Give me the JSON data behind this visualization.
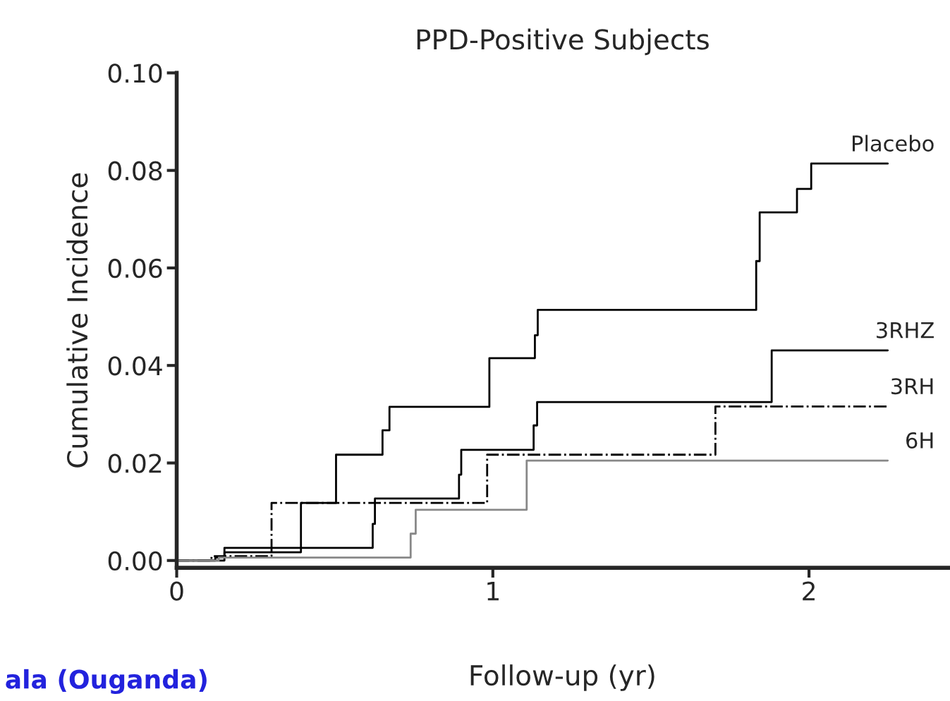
{
  "chart_data": {
    "type": "step",
    "title": "PPD-Positive Subjects",
    "xlabel": "Follow-up (yr)",
    "ylabel": "Cumulative Incidence",
    "xlim": [
      0,
      2.44
    ],
    "xticks": [
      0,
      1,
      2
    ],
    "ylim": [
      -0.0015,
      0.1
    ],
    "yticks": [
      {
        "value": 0,
        "label": "0.00"
      },
      {
        "value": 0.02,
        "label": "0.02"
      },
      {
        "value": 0.04,
        "label": "0.04"
      },
      {
        "value": 0.06,
        "label": "0.06"
      },
      {
        "value": 0.08,
        "label": "0.08"
      },
      {
        "value": 0.1,
        "label": "0.10"
      }
    ],
    "grid": false,
    "legend": false,
    "series": [
      {
        "name": "Placebo",
        "color": "#000000",
        "line_style": "solid",
        "x": [
          0,
          0.122,
          0.151,
          0.393,
          0.504,
          0.651,
          0.673,
          0.989,
          1.133,
          1.142,
          1.833,
          1.844,
          1.962,
          2.007,
          2.249
        ],
        "values": [
          0,
          0.0006,
          0.0017,
          0.0118,
          0.0217,
          0.0267,
          0.0315,
          0.0415,
          0.0462,
          0.0514,
          0.0614,
          0.0714,
          0.0762,
          0.0814,
          0.0814
        ]
      },
      {
        "name": "3RHZ",
        "color": "#000000",
        "line_style": "solid",
        "x": [
          0,
          0.151,
          0.62,
          0.627,
          0.893,
          0.9,
          1.129,
          1.14,
          1.882,
          2.249
        ],
        "values": [
          0,
          0.0026,
          0.0075,
          0.0127,
          0.0176,
          0.0227,
          0.0277,
          0.0325,
          0.0431,
          0.0431
        ]
      },
      {
        "name": "3RH",
        "color": "#000000",
        "line_style": "dashdot",
        "x": [
          0,
          0.11,
          0.3,
          0.982,
          1.704,
          2.249
        ],
        "values": [
          0,
          0.0009,
          0.0118,
          0.0217,
          0.0316,
          0.0316
        ]
      },
      {
        "name": "6H",
        "color": "#888888",
        "line_style": "solid",
        "x": [
          0,
          0.133,
          0.74,
          0.756,
          1.107,
          2.249
        ],
        "values": [
          0,
          0.0006,
          0.0055,
          0.0104,
          0.0205,
          0.0205
        ]
      }
    ],
    "annotations": [
      "ala (Ouganda)"
    ]
  }
}
